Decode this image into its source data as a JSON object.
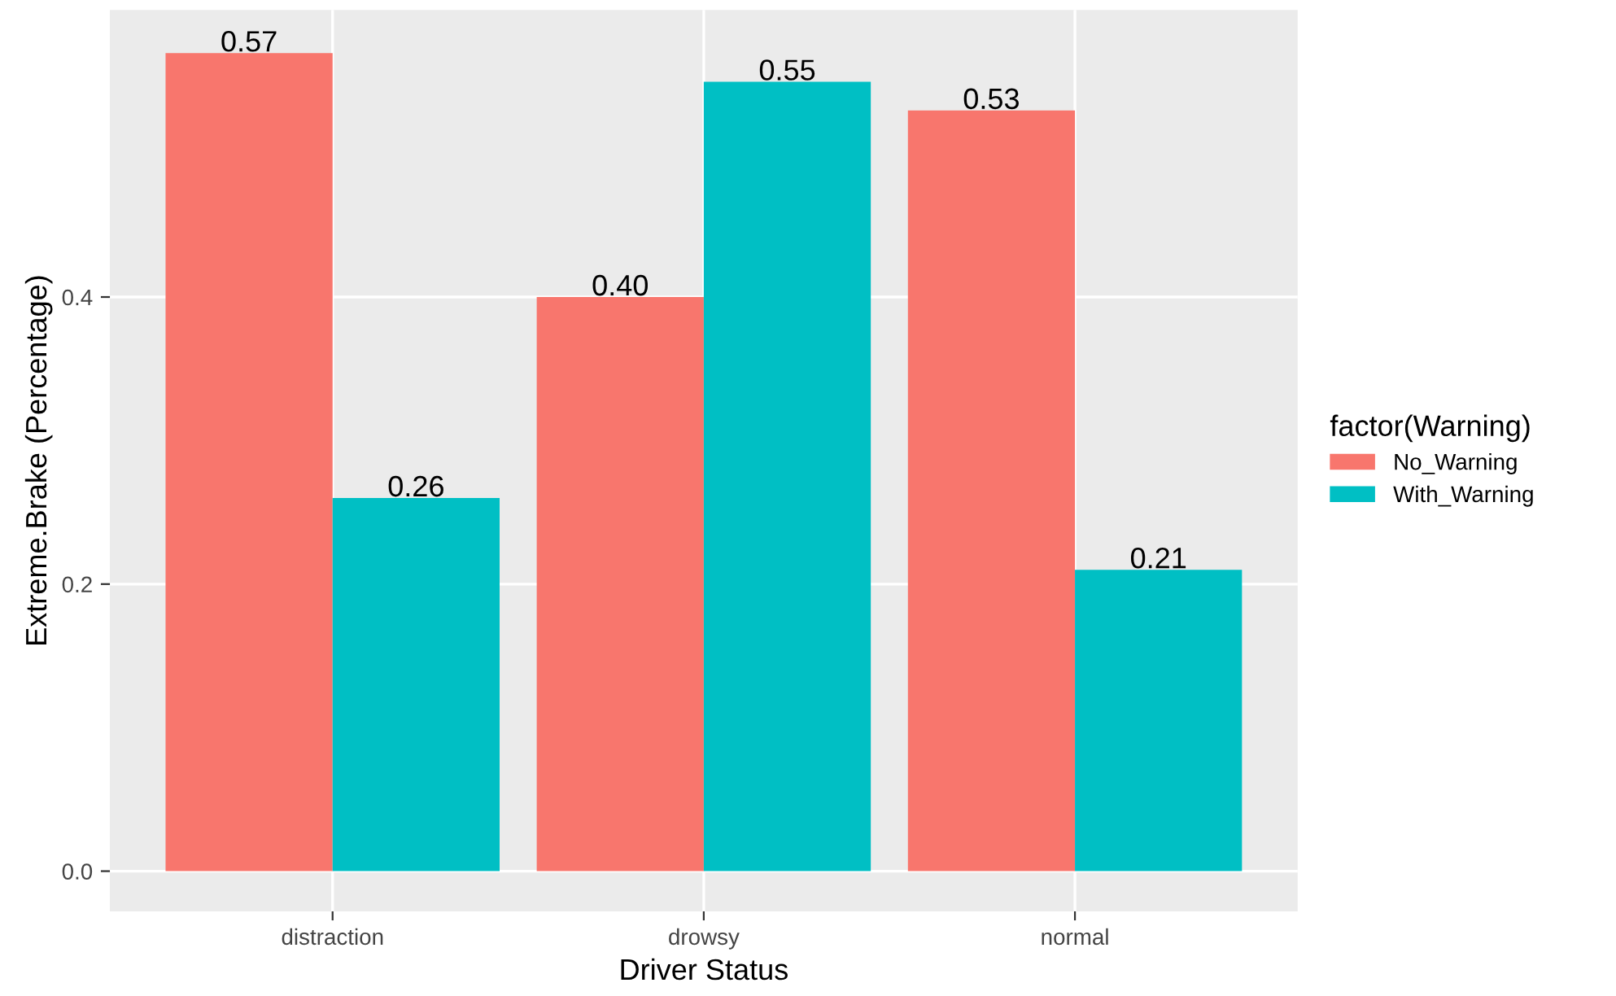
{
  "chart_data": {
    "type": "bar",
    "xlabel": "Driver Status",
    "ylabel": "Extreme.Brake (Percentage)",
    "legend_title": "factor(Warning)",
    "categories": [
      "distraction",
      "drowsy",
      "normal"
    ],
    "series": [
      {
        "name": "No_Warning",
        "color": "#f8766d",
        "values": [
          0.57,
          0.4,
          0.53
        ],
        "value_labels": [
          "0.57",
          "0.40",
          "0.53"
        ]
      },
      {
        "name": "With_Warning",
        "color": "#00bfc4",
        "values": [
          0.26,
          0.55,
          0.21
        ],
        "value_labels": [
          "0.26",
          "0.55",
          "0.21"
        ]
      }
    ],
    "ylim": [
      -0.028,
      0.6
    ],
    "yticks": [
      {
        "value": 0,
        "label": "0.0"
      },
      0.2,
      0.4
    ],
    "grid": true,
    "legend": "right"
  }
}
